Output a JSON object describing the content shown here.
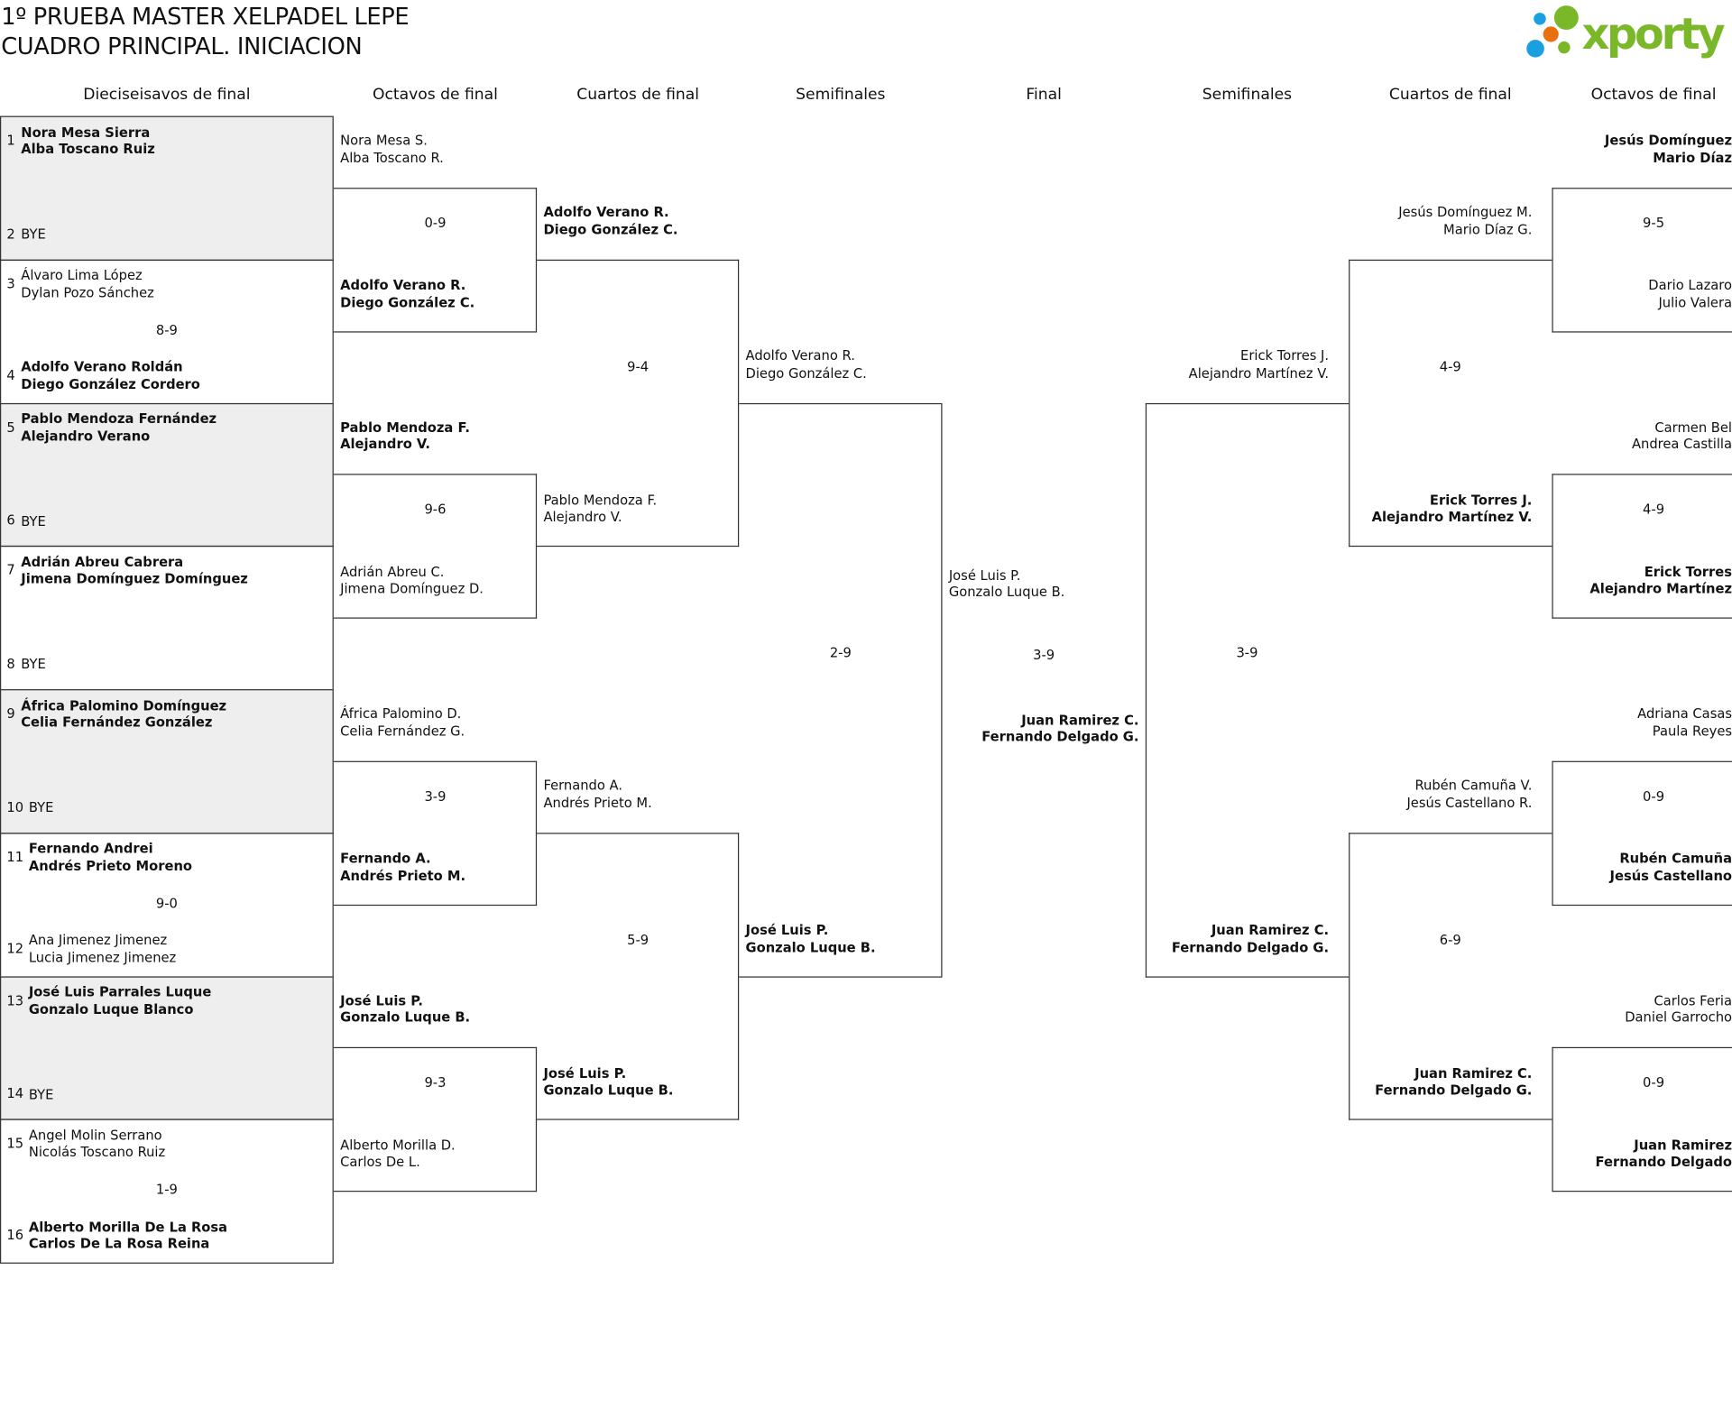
{
  "header": {
    "title_line1": "1º PRUEBA MASTER XELPADEL LEPE",
    "title_line2": "CUADRO PRINCIPAL. INICIACION"
  },
  "logo": {
    "text": "xporty",
    "colors": {
      "green": "#7ab829",
      "blue": "#1aa0e0",
      "orange": "#e8700f"
    }
  },
  "columns": [
    "Dieciseisavos de final",
    "Octavos de final",
    "Cuartos de final",
    "Semifinales",
    "Final",
    "Semifinales",
    "Cuartos de final",
    "Octavos de final"
  ],
  "dieciseisavos": [
    {
      "team1": {
        "seed": "1",
        "names": [
          "Nora Mesa Sierra",
          "Alba Toscano Ruiz"
        ],
        "winner": true
      },
      "score": "",
      "team2": {
        "seed": "2",
        "names": [
          "BYE"
        ],
        "winner": false
      },
      "shaded": true
    },
    {
      "team1": {
        "seed": "3",
        "names": [
          "Álvaro Lima López",
          "Dylan Pozo Sánchez"
        ],
        "winner": false
      },
      "score": "8-9",
      "team2": {
        "seed": "4",
        "names": [
          "Adolfo Verano Roldán",
          "Diego González Cordero"
        ],
        "winner": true
      },
      "shaded": false
    },
    {
      "team1": {
        "seed": "5",
        "names": [
          "Pablo Mendoza Fernández",
          "Alejandro Verano"
        ],
        "winner": true
      },
      "score": "",
      "team2": {
        "seed": "6",
        "names": [
          "BYE"
        ],
        "winner": false
      },
      "shaded": true
    },
    {
      "team1": {
        "seed": "7",
        "names": [
          "Adrián Abreu Cabrera",
          "Jimena Domínguez Domínguez"
        ],
        "winner": true
      },
      "score": "",
      "team2": {
        "seed": "8",
        "names": [
          "BYE"
        ],
        "winner": false
      },
      "shaded": false
    },
    {
      "team1": {
        "seed": "9",
        "names": [
          "África Palomino Domínguez",
          "Celia Fernández González"
        ],
        "winner": true
      },
      "score": "",
      "team2": {
        "seed": "10",
        "names": [
          "BYE"
        ],
        "winner": false
      },
      "shaded": true
    },
    {
      "team1": {
        "seed": "11",
        "names": [
          "Fernando Andrei",
          "Andrés Prieto Moreno"
        ],
        "winner": true
      },
      "score": "9-0",
      "team2": {
        "seed": "12",
        "names": [
          "Ana Jimenez Jimenez",
          "Lucia Jimenez Jimenez"
        ],
        "winner": false
      },
      "shaded": false
    },
    {
      "team1": {
        "seed": "13",
        "names": [
          "José Luis Parrales Luque",
          "Gonzalo Luque Blanco"
        ],
        "winner": true
      },
      "score": "",
      "team2": {
        "seed": "14",
        "names": [
          "BYE"
        ],
        "winner": false
      },
      "shaded": true
    },
    {
      "team1": {
        "seed": "15",
        "names": [
          "Angel Molin Serrano",
          "Nicolás Toscano Ruiz"
        ],
        "winner": false
      },
      "score": "1-9",
      "team2": {
        "seed": "16",
        "names": [
          "Alberto Morilla De La Rosa",
          "Carlos De La Rosa Reina"
        ],
        "winner": true
      },
      "shaded": false
    }
  ],
  "left": [
    [
      {
        "team1": {
          "names": [
            "Nora Mesa S.",
            "Alba Toscano R."
          ],
          "winner": false
        },
        "score": "0-9",
        "team2": {
          "names": [
            "Adolfo Verano R.",
            "Diego González C."
          ],
          "winner": true
        }
      },
      {
        "team1": {
          "names": [
            "Pablo Mendoza F.",
            "Alejandro V."
          ],
          "winner": true
        },
        "score": "9-6",
        "team2": {
          "names": [
            "Adrián Abreu C.",
            "Jimena Domínguez D."
          ],
          "winner": false
        }
      },
      {
        "team1": {
          "names": [
            "África Palomino D.",
            "Celia Fernández G."
          ],
          "winner": false
        },
        "score": "3-9",
        "team2": {
          "names": [
            "Fernando A.",
            "Andrés Prieto M."
          ],
          "winner": true
        }
      },
      {
        "team1": {
          "names": [
            "José Luis P.",
            "Gonzalo Luque B."
          ],
          "winner": true
        },
        "score": "9-3",
        "team2": {
          "names": [
            "Alberto Morilla D.",
            "Carlos De L."
          ],
          "winner": false
        }
      }
    ],
    [
      {
        "team1": {
          "names": [
            "Adolfo Verano R.",
            "Diego González C."
          ],
          "winner": true
        },
        "score": "9-4",
        "team2": {
          "names": [
            "Pablo Mendoza F.",
            "Alejandro V."
          ],
          "winner": false
        }
      },
      {
        "team1": {
          "names": [
            "Fernando A.",
            "Andrés Prieto M."
          ],
          "winner": false
        },
        "score": "5-9",
        "team2": {
          "names": [
            "José Luis P.",
            "Gonzalo Luque B."
          ],
          "winner": true
        }
      }
    ],
    [
      {
        "team1": {
          "names": [
            "Adolfo Verano R.",
            "Diego González C."
          ],
          "winner": false
        },
        "score": "2-9",
        "team2": {
          "names": [
            "José Luis P.",
            "Gonzalo Luque B."
          ],
          "winner": true
        }
      }
    ]
  ],
  "final": {
    "team1": {
      "names": [
        "José Luis P.",
        "Gonzalo Luque B."
      ],
      "winner": false
    },
    "score": "3-9",
    "team2": {
      "names": [
        "Juan Ramirez C.",
        "Fernando Delgado G."
      ],
      "winner": true
    }
  },
  "right": [
    [
      {
        "team1": {
          "names": [
            "Jesús Domínguez",
            "Mario Díaz"
          ],
          "winner": true
        },
        "score": "9-5",
        "team2": {
          "names": [
            "Dario Lazaro",
            "Julio Valera"
          ],
          "winner": false
        }
      },
      {
        "team1": {
          "names": [
            "Carmen Bel",
            "Andrea Castilla"
          ],
          "winner": false
        },
        "score": "4-9",
        "team2": {
          "names": [
            "Erick Torres",
            "Alejandro Martínez"
          ],
          "winner": true
        }
      },
      {
        "team1": {
          "names": [
            "Adriana Casas",
            "Paula Reyes"
          ],
          "winner": false
        },
        "score": "0-9",
        "team2": {
          "names": [
            "Rubén Camuña",
            "Jesús Castellano"
          ],
          "winner": true
        }
      },
      {
        "team1": {
          "names": [
            "Carlos Feria",
            "Daniel Garrocho"
          ],
          "winner": false
        },
        "score": "0-9",
        "team2": {
          "names": [
            "Juan Ramirez",
            "Fernando Delgado"
          ],
          "winner": true
        }
      }
    ],
    [
      {
        "team1": {
          "names": [
            "Jesús Domínguez M.",
            "Mario Díaz G."
          ],
          "winner": false
        },
        "score": "4-9",
        "team2": {
          "names": [
            "Erick Torres J.",
            "Alejandro Martínez V."
          ],
          "winner": true
        }
      },
      {
        "team1": {
          "names": [
            "Rubén Camuña V.",
            "Jesús Castellano R."
          ],
          "winner": false
        },
        "score": "6-9",
        "team2": {
          "names": [
            "Juan Ramirez C.",
            "Fernando Delgado G."
          ],
          "winner": true
        }
      }
    ],
    [
      {
        "team1": {
          "names": [
            "Erick Torres J.",
            "Alejandro Martínez V."
          ],
          "winner": false
        },
        "score": "3-9",
        "team2": {
          "names": [
            "Juan Ramirez C.",
            "Fernando Delgado G."
          ],
          "winner": true
        }
      }
    ]
  ]
}
